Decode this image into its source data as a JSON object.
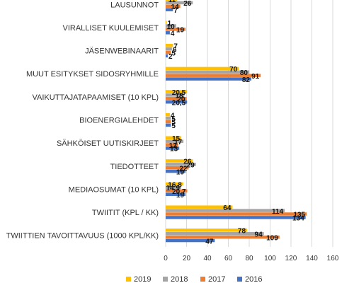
{
  "chart_data": {
    "type": "bar",
    "orientation": "horizontal",
    "categories": [
      "LAUSUNNOT",
      "VIRALLISET KUULEMISET",
      "JÄSENWEBINAARIT",
      "MUUT ESITYKSET SIDOSRYHMILLE",
      "VAIKUTTAJATAPAAMISET (10 KPL)",
      "BIOENERGIALEHDET",
      "SÄHKÖISET UUTISKIRJEET",
      "TIEDOTTEET",
      "MEDIAOSUMAT (10 KPL)",
      "TWIITIT (KPL / KK)",
      "TWIITTIEN TAVOITTAVUUS (1000 KPL/KK)"
    ],
    "series": [
      {
        "name": "2019",
        "color": "#ffc000",
        "values": [
          11,
          1,
          7,
          70,
          20.5,
          4,
          15,
          26,
          16.8,
          64,
          78
        ],
        "labels": [
          "11",
          "1",
          "7",
          "70",
          "20,5",
          "4",
          "15",
          "26",
          "16,8",
          "64",
          "78"
        ]
      },
      {
        "name": "2018",
        "color": "#a5a5a5",
        "values": [
          26,
          10,
          6,
          80,
          18,
          5,
          17,
          29,
          14.9,
          114,
          94
        ],
        "labels": [
          "26",
          "10",
          "6",
          "80",
          "18",
          "5",
          "17",
          "29",
          "14,9",
          "114",
          "94"
        ]
      },
      {
        "name": "2017",
        "color": "#ed7d31",
        "values": [
          14,
          19,
          5,
          91,
          20,
          5,
          12,
          22,
          20.7,
          135,
          109
        ],
        "labels": [
          "14",
          "19",
          "5",
          "91",
          "20",
          "5",
          "12",
          "22",
          "20,7",
          "135",
          "109"
        ]
      },
      {
        "name": "2016",
        "color": "#4472c4",
        "values": [
          7,
          4,
          2,
          82,
          20.5,
          5,
          13,
          19,
          19,
          134,
          47
        ],
        "labels": [
          "7",
          "4",
          "2",
          "82",
          "20,5",
          "5",
          "13",
          "19",
          "19",
          "134",
          "47"
        ]
      }
    ],
    "xlim": [
      0,
      160
    ],
    "xticks": [
      "0",
      "20",
      "40",
      "60",
      "80",
      "100",
      "120",
      "140",
      "160"
    ],
    "grid": "vertical",
    "legend": "bottom",
    "title": "",
    "xlabel": "",
    "ylabel": ""
  }
}
